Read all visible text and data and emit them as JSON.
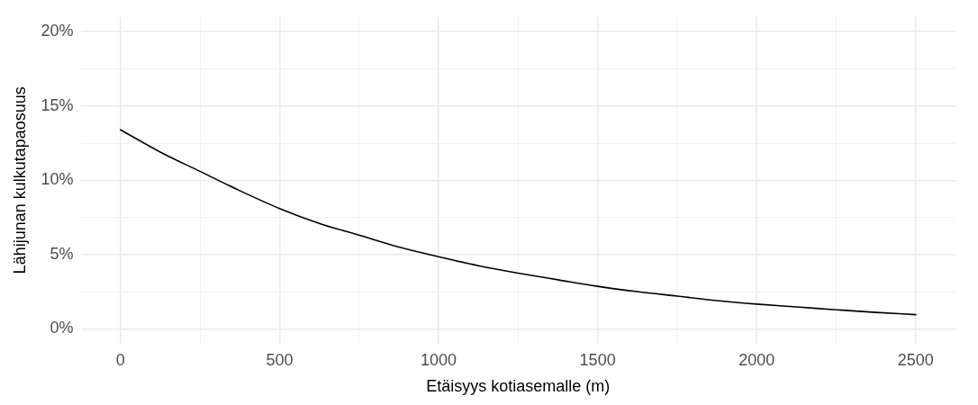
{
  "chart_data": {
    "type": "line",
    "xlabel": "Etäisyys kotiasemalle (m)",
    "ylabel": "Lähijunan kulkutapaosuus",
    "x": [
      0,
      125,
      250,
      375,
      500,
      625,
      750,
      875,
      1000,
      1125,
      1250,
      1375,
      1500,
      1625,
      1750,
      1875,
      2000,
      2125,
      2250,
      2375,
      2500
    ],
    "series": [
      {
        "color": "#000000",
        "values": [
          13.4,
          11.9,
          10.6,
          9.3,
          8.1,
          7.1,
          6.3,
          5.5,
          4.85,
          4.25,
          3.75,
          3.3,
          2.86,
          2.5,
          2.2,
          1.9,
          1.66,
          1.47,
          1.28,
          1.1,
          0.95
        ]
      }
    ],
    "xlim": [
      -125,
      2625
    ],
    "xticks": [
      0,
      {
        "value": 250,
        "label": null
      },
      500,
      {
        "value": 750,
        "label": null
      },
      1000,
      {
        "value": 1250,
        "label": null
      },
      1500,
      {
        "value": 1750,
        "label": null
      },
      2000,
      {
        "value": 2250,
        "label": null
      },
      2500
    ],
    "ylim": [
      -1,
      21
    ],
    "yticks": [
      {
        "value": 0,
        "label": "0%"
      },
      {
        "value": 2.5,
        "label": null
      },
      {
        "value": 5,
        "label": "5%"
      },
      {
        "value": 7.5,
        "label": null
      },
      {
        "value": 10,
        "label": "10%"
      },
      {
        "value": 12.5,
        "label": null
      },
      {
        "value": 15,
        "label": "15%"
      },
      {
        "value": 17.5,
        "label": null
      },
      {
        "value": 20,
        "label": "20%"
      }
    ],
    "grid": true,
    "legend": false,
    "marker": "none",
    "line_style": "solid"
  }
}
